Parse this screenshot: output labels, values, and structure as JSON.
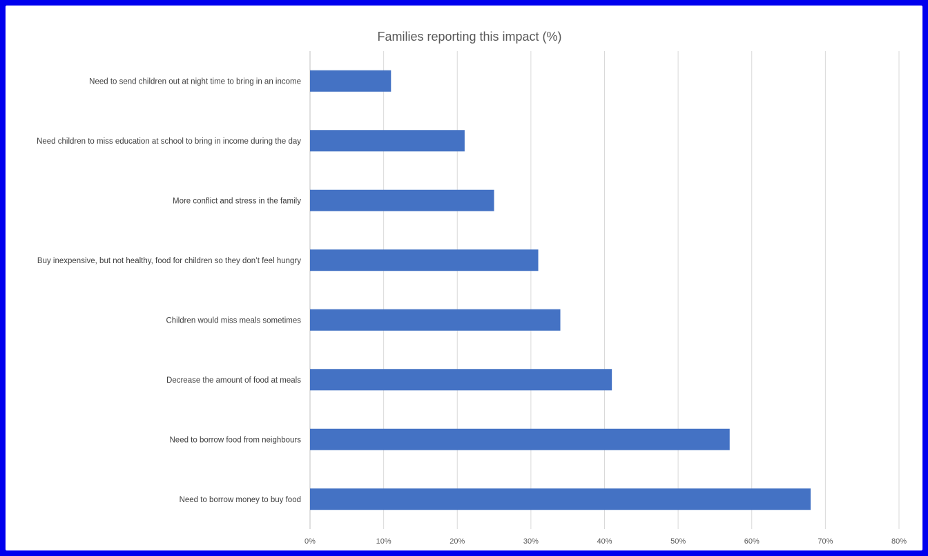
{
  "chart_data": {
    "type": "bar",
    "orientation": "horizontal",
    "title": "Families reporting this impact (%)",
    "xlabel": "",
    "ylabel": "",
    "xlim": [
      0,
      80
    ],
    "x_ticks": [
      "0%",
      "10%",
      "20%",
      "30%",
      "40%",
      "50%",
      "60%",
      "70%",
      "80%"
    ],
    "grid": "vertical",
    "legend": "none",
    "bar_color": "#4472c4",
    "categories": [
      "Need to send children out at night time to bring in an income",
      "Need children to miss education at school to bring in income during the day",
      "More conflict and stress in the family",
      "Buy inexpensive, but not healthy, food for children so they don’t feel hungry",
      "Children would miss meals sometimes",
      "Decrease the amount of food at meals",
      "Need to borrow food from neighbours",
      "Need to borrow money to buy food"
    ],
    "values": [
      11,
      21,
      25,
      31,
      34,
      41,
      57,
      68
    ]
  }
}
